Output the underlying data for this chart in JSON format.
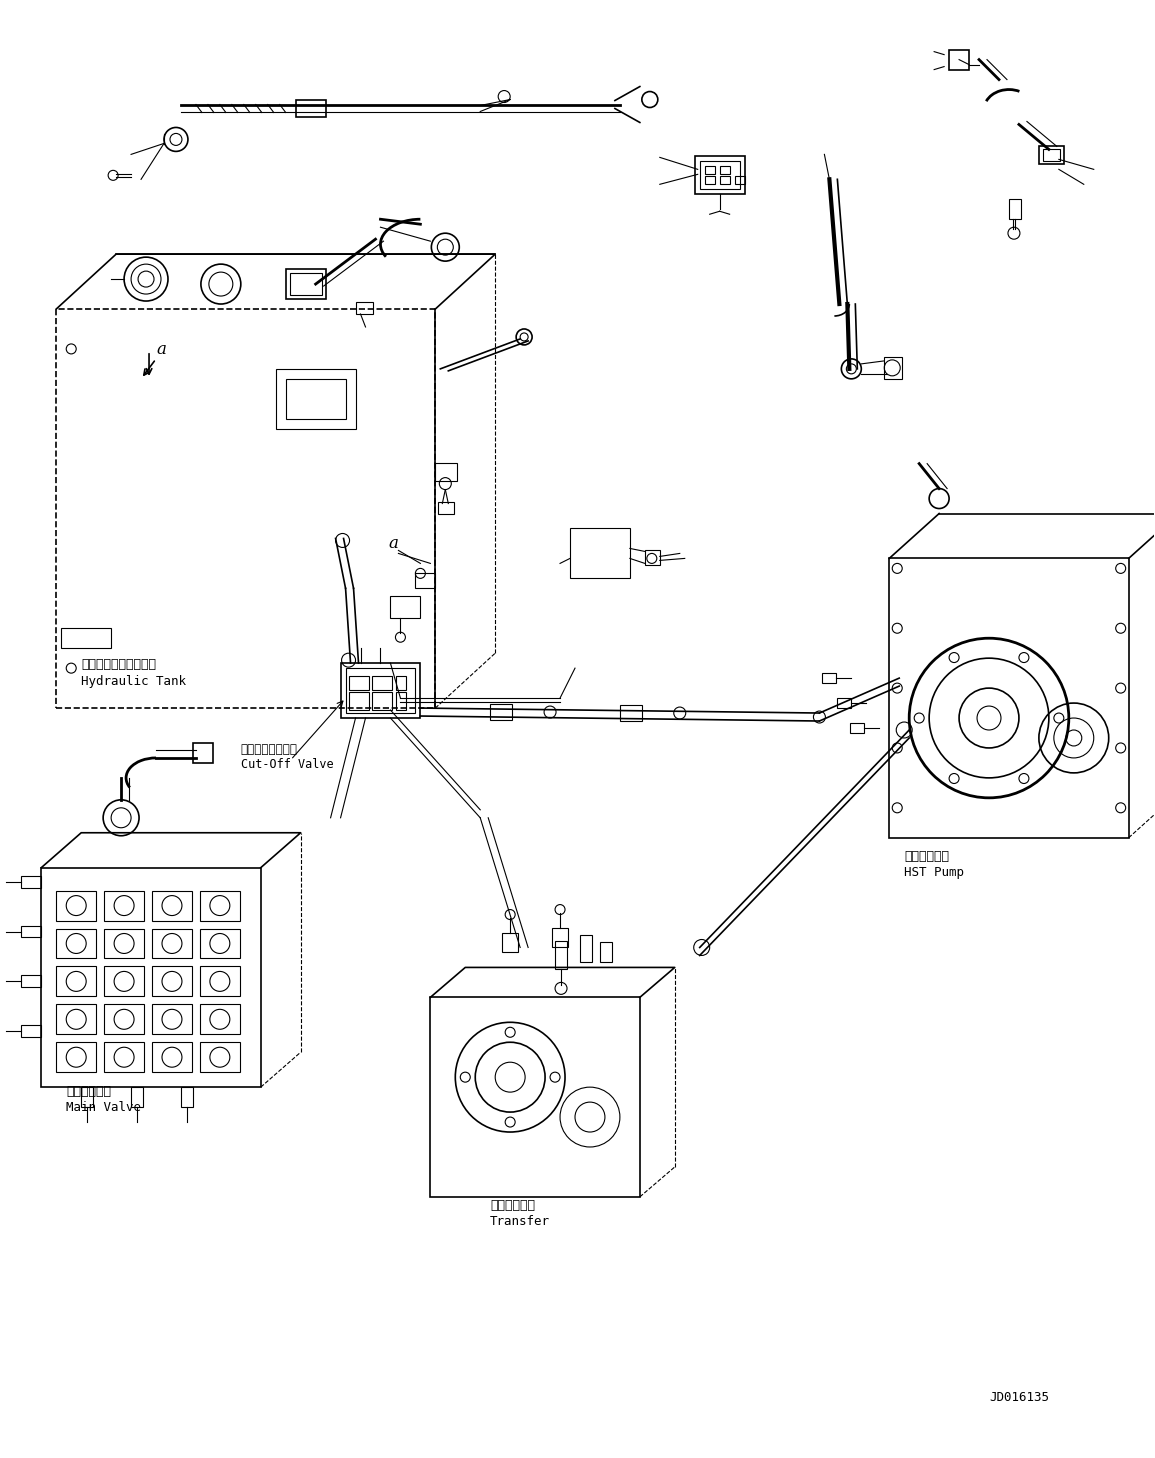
{
  "background_color": "#ffffff",
  "diagram_color": "#000000",
  "part_number": "JD016135",
  "labels": {
    "hydraulic_tank_jp": "ハイドロリックタンク",
    "hydraulic_tank_en": "Hydraulic Tank",
    "cut_off_valve_jp": "カットオフバルブ",
    "cut_off_valve_en": "Cut-Off Valve",
    "main_valve_jp": "メインバルブ",
    "main_valve_en": "Main Valve",
    "hst_pump_jp": "ＨＳＴポンプ",
    "hst_pump_en": "HST Pump",
    "transfer_jp": "トランスファ",
    "transfer_en": "Transfer"
  },
  "fig_width": 11.55,
  "fig_height": 14.58
}
